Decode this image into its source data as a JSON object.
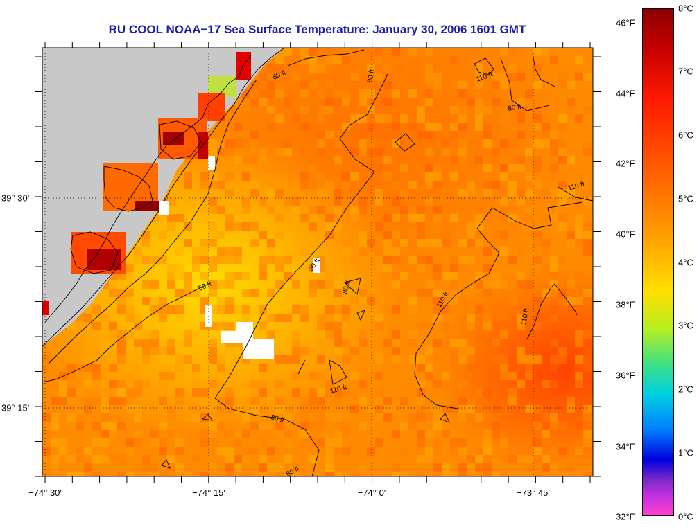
{
  "title": "RU COOL  NOAA−17  Sea Surface Temperature:  January 30, 2006 1601 GMT",
  "axes": {
    "longitude_labels": [
      "−74° 30'",
      "−74° 15'",
      "−74° 0'",
      "−73° 45'"
    ],
    "latitude_labels": [
      "39° 30'",
      "39° 15'"
    ]
  },
  "colorbar": {
    "fahrenheit_labels": [
      "46°F",
      "44°F",
      "42°F",
      "40°F",
      "38°F",
      "36°F",
      "34°F",
      "32°F"
    ],
    "celsius_labels": [
      "8°C",
      "7°C",
      "6°C",
      "5°C",
      "4°C",
      "3°C",
      "2°C",
      "1°C",
      "0°C"
    ]
  },
  "isobath_labels": [
    "50 ft",
    "50 ft",
    "80 ft",
    "80 ft",
    "80 ft",
    "80 ft",
    "80 ft",
    "110 ft",
    "110 ft",
    "110 ft",
    "110 ft",
    "110 ft",
    "80 ft"
  ],
  "colors": {
    "land": "#c8c8c8",
    "missing": "#ffffff",
    "title": "#1c1ca8",
    "warm": "#ff7a00",
    "cool": "#ffe000"
  }
}
